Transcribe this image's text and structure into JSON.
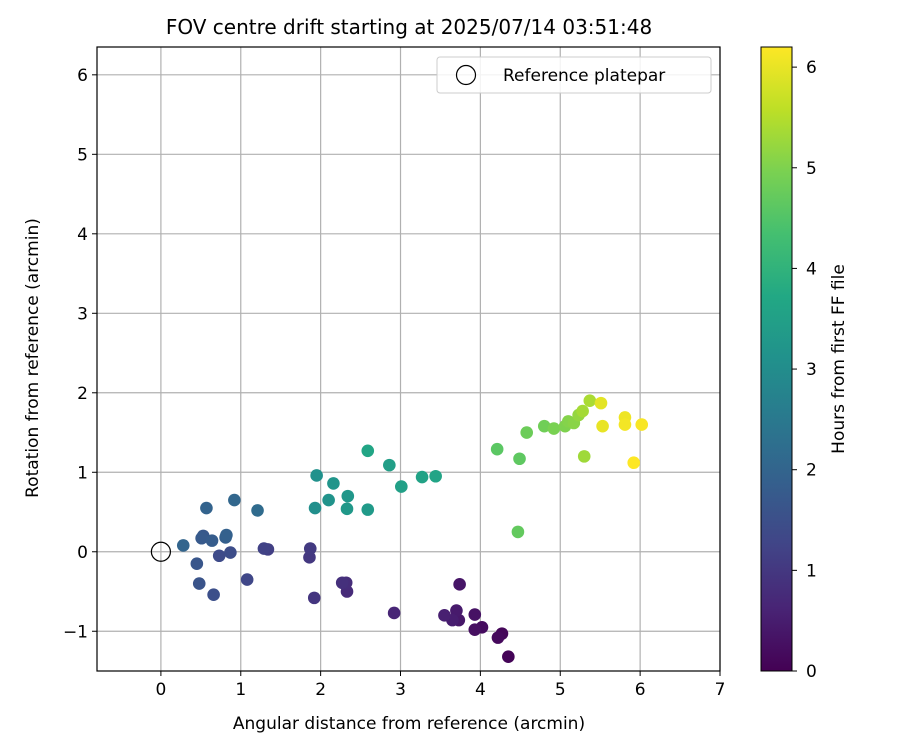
{
  "chart_data": {
    "type": "scatter",
    "title": "FOV centre drift starting at 2025/07/14 03:51:48",
    "xlabel": "Angular distance from reference (arcmin)",
    "ylabel": "Rotation from reference (arcmin)",
    "xlim": [
      -0.8,
      7.0
    ],
    "ylim": [
      -1.5,
      6.35
    ],
    "xticks": [
      "0",
      "1",
      "2",
      "3",
      "4",
      "5",
      "6",
      "7"
    ],
    "yticks": [
      "−1",
      "0",
      "1",
      "2",
      "3",
      "4",
      "5",
      "6"
    ],
    "grid": true,
    "legend_position": "top-right",
    "legend": [
      {
        "label": "Reference platepar",
        "marker": "open-circle"
      }
    ],
    "reference_point": {
      "x": 0,
      "y": 0
    },
    "colorbar": {
      "label": "Hours from first FF file",
      "colormap": "viridis",
      "range": [
        0,
        6.2
      ],
      "ticks": [
        "0",
        "1",
        "2",
        "3",
        "4",
        "5",
        "6"
      ]
    },
    "points": [
      {
        "x": 4.35,
        "y": -1.32,
        "h": 0.05
      },
      {
        "x": 4.27,
        "y": -1.03,
        "h": 0.1
      },
      {
        "x": 4.22,
        "y": -1.08,
        "h": 0.15
      },
      {
        "x": 4.02,
        "y": -0.95,
        "h": 0.2
      },
      {
        "x": 3.93,
        "y": -0.98,
        "h": 0.25
      },
      {
        "x": 3.93,
        "y": -0.79,
        "h": 0.3
      },
      {
        "x": 3.74,
        "y": -0.41,
        "h": 0.35
      },
      {
        "x": 3.73,
        "y": -0.86,
        "h": 0.4
      },
      {
        "x": 3.7,
        "y": -0.74,
        "h": 0.45
      },
      {
        "x": 3.65,
        "y": -0.86,
        "h": 0.5
      },
      {
        "x": 3.55,
        "y": -0.8,
        "h": 0.55
      },
      {
        "x": 2.92,
        "y": -0.77,
        "h": 0.65
      },
      {
        "x": 2.33,
        "y": -0.5,
        "h": 0.75
      },
      {
        "x": 2.32,
        "y": -0.39,
        "h": 0.8
      },
      {
        "x": 2.27,
        "y": -0.39,
        "h": 0.85
      },
      {
        "x": 1.92,
        "y": -0.58,
        "h": 0.95
      },
      {
        "x": 1.86,
        "y": -0.07,
        "h": 1.0
      },
      {
        "x": 1.87,
        "y": 0.04,
        "h": 1.05
      },
      {
        "x": 1.34,
        "y": 0.03,
        "h": 1.15
      },
      {
        "x": 1.29,
        "y": 0.04,
        "h": 1.2
      },
      {
        "x": 1.08,
        "y": -0.35,
        "h": 1.3
      },
      {
        "x": 0.73,
        "y": -0.05,
        "h": 1.4
      },
      {
        "x": 0.87,
        "y": -0.01,
        "h": 1.45
      },
      {
        "x": 0.66,
        "y": -0.54,
        "h": 1.5
      },
      {
        "x": 0.48,
        "y": -0.4,
        "h": 1.6
      },
      {
        "x": 0.45,
        "y": -0.15,
        "h": 1.65
      },
      {
        "x": 0.53,
        "y": 0.2,
        "h": 1.7
      },
      {
        "x": 0.51,
        "y": 0.17,
        "h": 1.75
      },
      {
        "x": 0.64,
        "y": 0.14,
        "h": 1.8
      },
      {
        "x": 0.81,
        "y": 0.18,
        "h": 1.85
      },
      {
        "x": 0.82,
        "y": 0.21,
        "h": 1.9
      },
      {
        "x": 0.57,
        "y": 0.55,
        "h": 1.95
      },
      {
        "x": 0.28,
        "y": 0.08,
        "h": 2.0
      },
      {
        "x": 0.92,
        "y": 0.65,
        "h": 2.05
      },
      {
        "x": 1.21,
        "y": 0.52,
        "h": 2.15
      },
      {
        "x": 1.93,
        "y": 0.55,
        "h": 3.05
      },
      {
        "x": 1.95,
        "y": 0.96,
        "h": 3.1
      },
      {
        "x": 2.1,
        "y": 0.65,
        "h": 3.15
      },
      {
        "x": 2.16,
        "y": 0.86,
        "h": 3.2
      },
      {
        "x": 2.34,
        "y": 0.7,
        "h": 3.25
      },
      {
        "x": 2.33,
        "y": 0.54,
        "h": 3.3
      },
      {
        "x": 2.59,
        "y": 0.53,
        "h": 3.35
      },
      {
        "x": 2.86,
        "y": 1.09,
        "h": 3.45
      },
      {
        "x": 3.01,
        "y": 0.82,
        "h": 3.5
      },
      {
        "x": 3.27,
        "y": 0.94,
        "h": 3.55
      },
      {
        "x": 3.44,
        "y": 0.95,
        "h": 3.6
      },
      {
        "x": 2.59,
        "y": 1.27,
        "h": 3.65
      },
      {
        "x": 4.21,
        "y": 1.29,
        "h": 4.6
      },
      {
        "x": 4.49,
        "y": 1.17,
        "h": 4.65
      },
      {
        "x": 4.47,
        "y": 0.25,
        "h": 4.7
      },
      {
        "x": 4.58,
        "y": 1.5,
        "h": 4.8
      },
      {
        "x": 4.8,
        "y": 1.58,
        "h": 4.85
      },
      {
        "x": 4.92,
        "y": 1.55,
        "h": 4.95
      },
      {
        "x": 5.06,
        "y": 1.58,
        "h": 5.0
      },
      {
        "x": 5.1,
        "y": 1.64,
        "h": 5.05
      },
      {
        "x": 5.17,
        "y": 1.62,
        "h": 5.1
      },
      {
        "x": 5.23,
        "y": 1.72,
        "h": 5.2
      },
      {
        "x": 5.3,
        "y": 1.2,
        "h": 5.3
      },
      {
        "x": 5.28,
        "y": 1.77,
        "h": 5.35
      },
      {
        "x": 5.37,
        "y": 1.9,
        "h": 5.4
      },
      {
        "x": 5.51,
        "y": 1.87,
        "h": 5.95
      },
      {
        "x": 5.53,
        "y": 1.58,
        "h": 6.0
      },
      {
        "x": 5.81,
        "y": 1.69,
        "h": 6.05
      },
      {
        "x": 5.81,
        "y": 1.6,
        "h": 6.1
      },
      {
        "x": 6.02,
        "y": 1.6,
        "h": 6.15
      },
      {
        "x": 5.92,
        "y": 1.12,
        "h": 6.2
      }
    ]
  }
}
